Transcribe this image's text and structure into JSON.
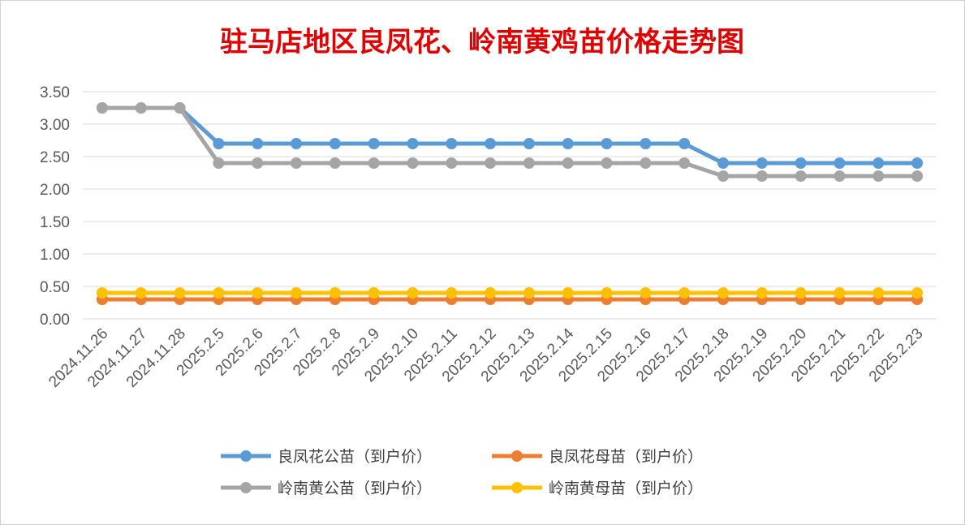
{
  "chart_data": {
    "type": "line",
    "title": "驻马店地区良凤花、岭南黄鸡苗价格走势图",
    "xlabel": "",
    "ylabel": "",
    "ylim": [
      0,
      3.5
    ],
    "yticks": [
      "0.00",
      "0.50",
      "1.00",
      "1.50",
      "2.00",
      "2.50",
      "3.00",
      "3.50"
    ],
    "grid": true,
    "legend_position": "bottom",
    "categories": [
      "2024.11.26",
      "2024.11.27",
      "2024.11.28",
      "2025.2.5",
      "2025.2.6",
      "2025.2.7",
      "2025.2.8",
      "2025.2.9",
      "2025.2.10",
      "2025.2.11",
      "2025.2.12",
      "2025.2.13",
      "2025.2.14",
      "2025.2.15",
      "2025.2.16",
      "2025.2.17",
      "2025.2.18",
      "2025.2.19",
      "2025.2.20",
      "2025.2.21",
      "2025.2.22",
      "2025.2.23"
    ],
    "series": [
      {
        "name": "良凤花公苗（到户价）",
        "color": "#5b9bd5",
        "values": [
          3.25,
          3.25,
          3.25,
          2.7,
          2.7,
          2.7,
          2.7,
          2.7,
          2.7,
          2.7,
          2.7,
          2.7,
          2.7,
          2.7,
          2.7,
          2.7,
          2.4,
          2.4,
          2.4,
          2.4,
          2.4,
          2.4
        ]
      },
      {
        "name": "良凤花母苗（到户价）",
        "color": "#ed7d31",
        "values": [
          0.3,
          0.3,
          0.3,
          0.3,
          0.3,
          0.3,
          0.3,
          0.3,
          0.3,
          0.3,
          0.3,
          0.3,
          0.3,
          0.3,
          0.3,
          0.3,
          0.3,
          0.3,
          0.3,
          0.3,
          0.3,
          0.3
        ]
      },
      {
        "name": "岭南黄公苗（到户价）",
        "color": "#a5a5a5",
        "values": [
          3.25,
          3.25,
          3.25,
          2.4,
          2.4,
          2.4,
          2.4,
          2.4,
          2.4,
          2.4,
          2.4,
          2.4,
          2.4,
          2.4,
          2.4,
          2.4,
          2.2,
          2.2,
          2.2,
          2.2,
          2.2,
          2.2
        ]
      },
      {
        "name": "岭南黄母苗（到户价）",
        "color": "#ffc000",
        "values": [
          0.4,
          0.4,
          0.4,
          0.4,
          0.4,
          0.4,
          0.4,
          0.4,
          0.4,
          0.4,
          0.4,
          0.4,
          0.4,
          0.4,
          0.4,
          0.4,
          0.4,
          0.4,
          0.4,
          0.4,
          0.4,
          0.4
        ]
      }
    ]
  }
}
